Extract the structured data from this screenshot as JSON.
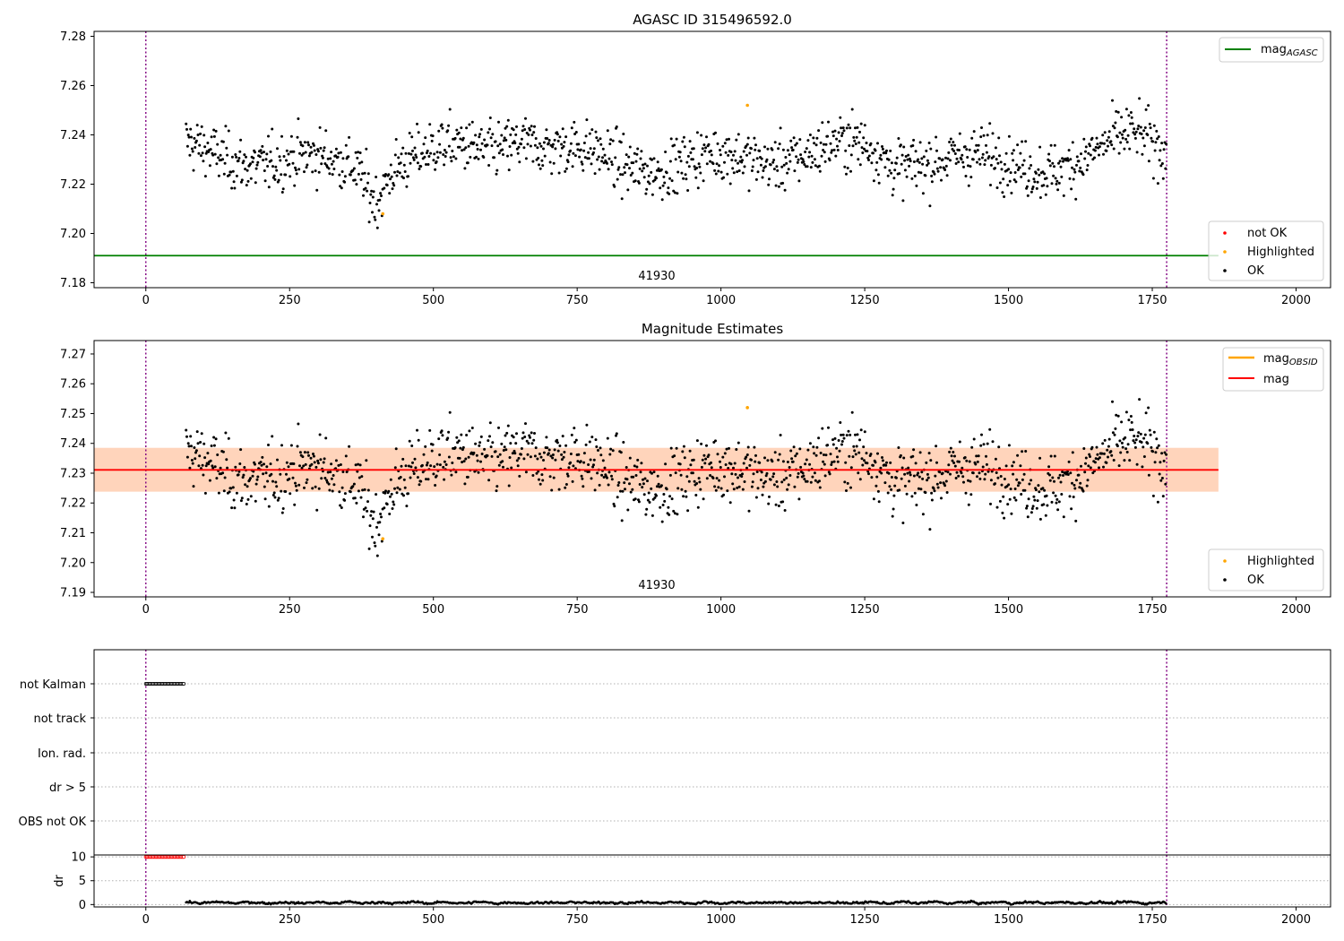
{
  "figure": {
    "title_top": "AGASC ID 315496592.0",
    "title_middle": "Magnitude Estimates",
    "obsid_label": "41930"
  },
  "colors": {
    "ok": "#000000",
    "highlighted": "#ffa500",
    "not_ok": "#ff0000",
    "mag_agasc": "#008000",
    "mag_line": "#ff0000",
    "mag_obsid": "#ffa500",
    "band_outer": "#ffc0cb",
    "band_inner": "#ffa500",
    "obs_boundary": "#800080"
  },
  "chart_data": [
    {
      "id": "agasc",
      "type": "scatter",
      "title": "AGASC ID 315496592.0",
      "xlim": [
        -90,
        2060
      ],
      "ylim": [
        7.178,
        7.282
      ],
      "xticks": [
        "0",
        "250",
        "500",
        "750",
        "1000",
        "1250",
        "1500",
        "1750",
        "2000"
      ],
      "yticks": [
        "7.18",
        "7.20",
        "7.22",
        "7.24",
        "7.26",
        "7.28"
      ],
      "hline": {
        "name": "mag_AGASC",
        "y": 7.191
      },
      "obs_boundaries": [
        0,
        1775
      ],
      "obs_label": "41930",
      "highlighted_points": [
        {
          "x": 412,
          "y": 7.208
        },
        {
          "x": 1046,
          "y": 7.252
        }
      ],
      "legend_upper": [
        "mag_AGASC"
      ],
      "legend_lower": [
        "not OK",
        "Highlighted",
        "OK"
      ]
    },
    {
      "id": "estimates",
      "type": "scatter",
      "title": "Magnitude Estimates",
      "xlim": [
        -90,
        2060
      ],
      "ylim": [
        7.1885,
        7.2745
      ],
      "xticks": [
        "0",
        "250",
        "500",
        "750",
        "1000",
        "1250",
        "1500",
        "1750",
        "2000"
      ],
      "yticks": [
        "7.19",
        "7.20",
        "7.21",
        "7.22",
        "7.23",
        "7.24",
        "7.25",
        "7.26",
        "7.27"
      ],
      "mag": 7.2311,
      "mag_band": [
        7.2238,
        7.2385
      ],
      "band_xlim": [
        -90,
        1865
      ],
      "obs_boundaries": [
        0,
        1775
      ],
      "obs_label": "41930",
      "highlighted_points": [
        {
          "x": 412,
          "y": 7.208
        },
        {
          "x": 1046,
          "y": 7.252
        }
      ],
      "legend_upper": [
        "mag_OBSID",
        "mag"
      ],
      "legend_lower": [
        "Highlighted",
        "OK"
      ]
    },
    {
      "id": "flags",
      "type": "scatter",
      "categories": [
        "not Kalman",
        "not track",
        "Ion. rad.",
        "dr > 5",
        "OBS not OK"
      ],
      "flag_ranges": [
        {
          "flag": "not Kalman",
          "x": [
            0,
            68
          ]
        }
      ],
      "xlim": [
        -90,
        2060
      ],
      "obs_boundaries": [
        0,
        1775
      ]
    },
    {
      "id": "dr",
      "type": "scatter",
      "ylabel": "dr",
      "ylim": [
        -0.5,
        10.4
      ],
      "yticks": [
        "0",
        "5",
        "10"
      ],
      "xticks": [
        "0",
        "250",
        "500",
        "750",
        "1000",
        "1250",
        "1500",
        "1750",
        "2000"
      ],
      "xlim": [
        -90,
        2060
      ],
      "clipped_range": [
        0,
        68
      ],
      "clipped_value": 10,
      "dr_mean": 0.4,
      "obs_boundaries": [
        0,
        1775
      ]
    }
  ]
}
